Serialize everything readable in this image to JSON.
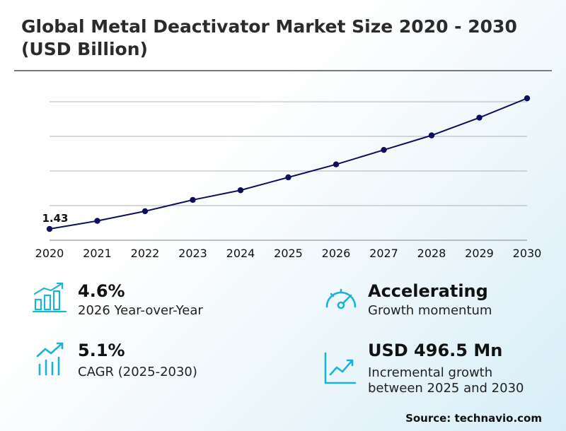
{
  "title": "Global Metal Deactivator Market Size 2020 - 2030 (USD Billion)",
  "chart_data": {
    "type": "line",
    "title": "Global Metal Deactivator Market Size 2020 - 2030 (USD Billion)",
    "x": [
      "2020",
      "2021",
      "2022",
      "2023",
      "2024",
      "2025",
      "2026",
      "2027",
      "2028",
      "2029",
      "2030"
    ],
    "series": [
      {
        "values": [
          1.43,
          1.48,
          1.54,
          1.61,
          1.67,
          1.75,
          1.83,
          1.92,
          2.01,
          2.12,
          2.24
        ]
      }
    ],
    "ylim": [
      1.36,
      2.28
    ],
    "data_labels": [
      {
        "x": "2020",
        "text": "1.43"
      }
    ],
    "grid": true,
    "line_color": "#0c0f5c"
  },
  "kpis": [
    {
      "value": "4.6%",
      "label": "2026 Year-over-Year",
      "icon": "bar-chart-growth-icon"
    },
    {
      "value": "Accelerating",
      "label": "Growth momentum",
      "icon": "speedometer-icon"
    },
    {
      "value": "5.1%",
      "label": "CAGR (2025-2030)",
      "icon": "trend-bars-icon"
    },
    {
      "value": "USD 496.5 Mn",
      "label_line1": "Incremental growth",
      "label_line2": "between 2025 and 2030",
      "icon": "line-chart-icon"
    }
  ],
  "source": "Source: technavio.com",
  "colors": {
    "accent": "#1ab3d3",
    "line": "#0c0f5c",
    "grid": "#9a9a9a"
  }
}
